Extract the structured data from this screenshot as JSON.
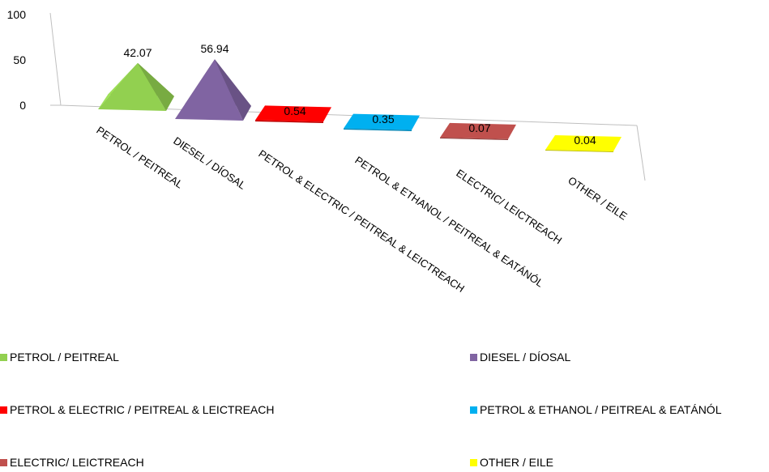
{
  "chart_data": {
    "type": "bar",
    "style": "3d-pyramid",
    "categories": [
      "PETROL / PEITREAL",
      "DIESEL / DÍOSAL",
      "PETROL & ELECTRIC / PEITREAL & LEICTREACH",
      "PETROL & ETHANOL / PEITREAL & EATÁNÓL",
      "ELECTRIC/  LEICTREACH",
      "OTHER / EILE"
    ],
    "values": [
      42.07,
      56.94,
      0.54,
      0.35,
      0.07,
      0.04
    ],
    "data_labels": [
      "42.07",
      "56.94",
      "0.54",
      "0.35",
      "0.07",
      "0.04"
    ],
    "colors": [
      "#92d050",
      "#8064a2",
      "#ff0000",
      "#00b0f0",
      "#c0504d",
      "#ffff00"
    ],
    "ylim": [
      0,
      100
    ],
    "y_ticks": [
      "0",
      "50",
      "100"
    ],
    "title": "",
    "xlabel": "",
    "ylabel": "",
    "legend_position": "bottom"
  }
}
